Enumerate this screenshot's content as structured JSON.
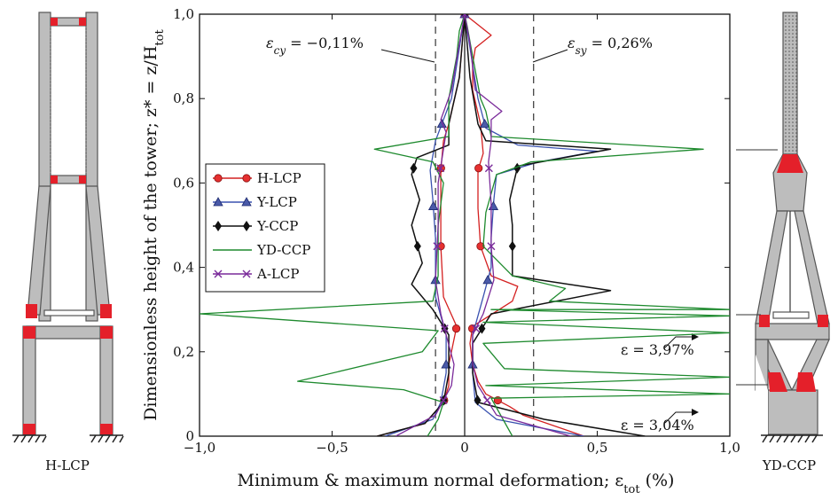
{
  "chart_data": {
    "type": "line",
    "xlabel": "Minimum & maximum normal deformation; ε",
    "xlabel_sub": "tot",
    "xlabel_unit": "(%)",
    "ylabel": "Dimensionless height of the tower; z* = z/H",
    "ylabel_sub": "tot",
    "xlim": [
      -1.0,
      1.0
    ],
    "ylim": [
      0,
      1.0
    ],
    "x_ticks": [
      -1.0,
      -0.5,
      0,
      0.5,
      1.0
    ],
    "x_tick_labels": [
      "−1,0",
      "−0,5",
      "0",
      "0,5",
      "1,0"
    ],
    "y_ticks": [
      0,
      0.2,
      0.4,
      0.6,
      0.8,
      1.0
    ],
    "y_tick_labels": [
      "0",
      "0,2",
      "0,4",
      "0,6",
      "0,8",
      "1,0"
    ],
    "reference_lines": [
      {
        "x": -0.11,
        "label": "ε",
        "sub": "cy",
        "value": " = −0,11%"
      },
      {
        "x": 0.26,
        "label": "ε",
        "sub": "sy",
        "value": " = 0,26%"
      }
    ],
    "annotations": [
      {
        "text": "ε = 3,97%"
      },
      {
        "text": "ε = 3,04%"
      }
    ],
    "legend_position": "left",
    "series": [
      {
        "name": "H-LCP",
        "color": "#d42020",
        "marker": "circle",
        "min": [
          [
            -0.33,
            0
          ],
          [
            -0.15,
            0.03
          ],
          [
            -0.08,
            0.08
          ],
          [
            -0.06,
            0.12
          ],
          [
            -0.06,
            0.17
          ],
          [
            -0.03,
            0.26
          ],
          [
            -0.08,
            0.33
          ],
          [
            -0.09,
            0.45
          ],
          [
            -0.09,
            0.54
          ],
          [
            -0.09,
            0.63
          ],
          [
            -0.08,
            0.7
          ],
          [
            -0.06,
            0.74
          ],
          [
            -0.02,
            0.85
          ],
          [
            0.0,
            1.0
          ]
        ],
        "max": [
          [
            0.45,
            0
          ],
          [
            0.22,
            0.05
          ],
          [
            0.17,
            0.07
          ],
          [
            0.08,
            0.1
          ],
          [
            0.05,
            0.13
          ],
          [
            0.03,
            0.17
          ],
          [
            0.02,
            0.22
          ],
          [
            0.03,
            0.26
          ],
          [
            0.18,
            0.32
          ],
          [
            0.2,
            0.355
          ],
          [
            0.1,
            0.38
          ],
          [
            0.06,
            0.45
          ],
          [
            0.05,
            0.54
          ],
          [
            0.05,
            0.63
          ],
          [
            0.07,
            0.67
          ],
          [
            0.06,
            0.74
          ],
          [
            0.03,
            0.82
          ],
          [
            0.03,
            0.88
          ],
          [
            0.04,
            0.92
          ],
          [
            0.1,
            0.95
          ],
          [
            0.0,
            1.0
          ]
        ]
      },
      {
        "name": "Y-LCP",
        "color": "#3a52b0",
        "marker": "triangle",
        "min": [
          [
            -0.3,
            0
          ],
          [
            -0.12,
            0.04
          ],
          [
            -0.09,
            0.08
          ],
          [
            -0.07,
            0.15
          ],
          [
            -0.07,
            0.24
          ],
          [
            -0.11,
            0.33
          ],
          [
            -0.11,
            0.4
          ],
          [
            -0.11,
            0.47
          ],
          [
            -0.12,
            0.56
          ],
          [
            -0.13,
            0.63
          ],
          [
            -0.11,
            0.7
          ],
          [
            -0.05,
            0.8
          ],
          [
            0.0,
            1.0
          ]
        ],
        "max": [
          [
            0.45,
            0
          ],
          [
            0.12,
            0.04
          ],
          [
            0.04,
            0.08
          ],
          [
            0.03,
            0.15
          ],
          [
            0.03,
            0.24
          ],
          [
            0.07,
            0.33
          ],
          [
            0.1,
            0.4
          ],
          [
            0.1,
            0.47
          ],
          [
            0.11,
            0.56
          ],
          [
            0.12,
            0.62
          ],
          [
            0.28,
            0.65
          ],
          [
            0.5,
            0.675
          ],
          [
            0.2,
            0.69
          ],
          [
            0.08,
            0.73
          ],
          [
            0.05,
            0.8
          ],
          [
            0.0,
            1.0
          ]
        ]
      },
      {
        "name": "Y-CCP",
        "color": "#111111",
        "marker": "diamond",
        "min": [
          [
            -0.33,
            0
          ],
          [
            -0.15,
            0.03
          ],
          [
            -0.08,
            0.08
          ],
          [
            -0.06,
            0.15
          ],
          [
            -0.06,
            0.24
          ],
          [
            -0.12,
            0.3
          ],
          [
            -0.2,
            0.36
          ],
          [
            -0.16,
            0.41
          ],
          [
            -0.2,
            0.5
          ],
          [
            -0.17,
            0.56
          ],
          [
            -0.2,
            0.62
          ],
          [
            -0.18,
            0.66
          ],
          [
            -0.06,
            0.69
          ],
          [
            -0.06,
            0.74
          ],
          [
            -0.02,
            0.85
          ],
          [
            0.0,
            1.0
          ]
        ],
        "max": [
          [
            0.68,
            0
          ],
          [
            0.3,
            0.04
          ],
          [
            0.05,
            0.08
          ],
          [
            0.03,
            0.15
          ],
          [
            0.03,
            0.22
          ],
          [
            0.1,
            0.29
          ],
          [
            0.55,
            0.345
          ],
          [
            0.18,
            0.38
          ],
          [
            0.18,
            0.41
          ],
          [
            0.18,
            0.5
          ],
          [
            0.17,
            0.56
          ],
          [
            0.2,
            0.64
          ],
          [
            0.55,
            0.68
          ],
          [
            0.08,
            0.7
          ],
          [
            0.05,
            0.74
          ],
          [
            0.02,
            0.85
          ],
          [
            0.0,
            1.0
          ]
        ]
      },
      {
        "name": "YD-CCP",
        "color": "#1e8a2e",
        "marker": "none",
        "min": [
          [
            -0.14,
            0
          ],
          [
            -0.1,
            0.04
          ],
          [
            -0.08,
            0.08
          ],
          [
            -0.23,
            0.11
          ],
          [
            -0.63,
            0.13
          ],
          [
            -0.16,
            0.2
          ],
          [
            -0.1,
            0.25
          ],
          [
            -1.0,
            0.29
          ],
          [
            -0.12,
            0.32
          ],
          [
            -0.1,
            0.38
          ],
          [
            -0.1,
            0.5
          ],
          [
            -0.08,
            0.6
          ],
          [
            -0.12,
            0.65
          ],
          [
            -0.34,
            0.68
          ],
          [
            -0.06,
            0.71
          ],
          [
            -0.06,
            0.8
          ],
          [
            -0.03,
            0.9
          ],
          [
            -0.02,
            0.96
          ],
          [
            0.0,
            1.0
          ]
        ],
        "max": [
          [
            0.18,
            0
          ],
          [
            0.1,
            0.09
          ],
          [
            1.0,
            0.1
          ],
          [
            0.08,
            0.12
          ],
          [
            1.0,
            0.14
          ],
          [
            0.15,
            0.16
          ],
          [
            0.07,
            0.22
          ],
          [
            1.0,
            0.245
          ],
          [
            0.07,
            0.27
          ],
          [
            1.0,
            0.285
          ],
          [
            0.1,
            0.3
          ],
          [
            1.0,
            0.3
          ],
          [
            0.32,
            0.32
          ],
          [
            0.38,
            0.35
          ],
          [
            0.18,
            0.38
          ],
          [
            0.07,
            0.45
          ],
          [
            0.08,
            0.53
          ],
          [
            0.12,
            0.62
          ],
          [
            0.25,
            0.65
          ],
          [
            0.9,
            0.68
          ],
          [
            0.1,
            0.71
          ],
          [
            0.08,
            0.77
          ],
          [
            0.06,
            0.8
          ],
          [
            0.03,
            0.9
          ],
          [
            0.01,
            0.97
          ],
          [
            0.0,
            1.0
          ]
        ]
      },
      {
        "name": "A-LCP",
        "color": "#7a2a9a",
        "marker": "x",
        "min": [
          [
            -0.26,
            0
          ],
          [
            -0.11,
            0.05
          ],
          [
            -0.05,
            0.12
          ],
          [
            -0.04,
            0.17
          ],
          [
            -0.07,
            0.24
          ],
          [
            -0.09,
            0.29
          ],
          [
            -0.11,
            0.37
          ],
          [
            -0.1,
            0.5
          ],
          [
            -0.1,
            0.6
          ],
          [
            -0.07,
            0.72
          ],
          [
            -0.09,
            0.75
          ],
          [
            -0.05,
            0.82
          ],
          [
            -0.02,
            0.93
          ],
          [
            0.0,
            1.0
          ]
        ],
        "max": [
          [
            0.4,
            0
          ],
          [
            0.12,
            0.05
          ],
          [
            0.05,
            0.12
          ],
          [
            0.03,
            0.17
          ],
          [
            0.03,
            0.24
          ],
          [
            0.07,
            0.29
          ],
          [
            0.11,
            0.37
          ],
          [
            0.1,
            0.45
          ],
          [
            0.1,
            0.55
          ],
          [
            0.09,
            0.65
          ],
          [
            0.1,
            0.7
          ],
          [
            0.1,
            0.75
          ],
          [
            0.14,
            0.77
          ],
          [
            0.04,
            0.82
          ],
          [
            0.02,
            0.93
          ],
          [
            0.0,
            1.0
          ]
        ]
      }
    ]
  },
  "figures": {
    "left_caption": "H-LCP",
    "right_caption": "YD-CCP"
  }
}
